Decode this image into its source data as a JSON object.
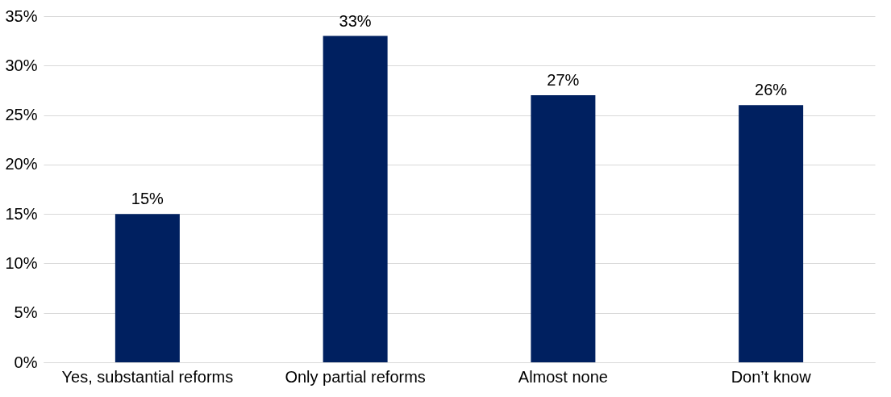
{
  "chart_data": {
    "type": "bar",
    "categories": [
      "Yes, substantial reforms",
      "Only partial reforms",
      "Almost none",
      "Don’t know"
    ],
    "values": [
      15,
      33,
      27,
      26
    ],
    "color": "#002060",
    "ylim": [
      0,
      35
    ],
    "yticks": [
      {
        "value": 0,
        "label": "0%"
      },
      {
        "value": 5,
        "label": "5%"
      },
      {
        "value": 10,
        "label": "10%"
      },
      {
        "value": 15,
        "label": "15%"
      },
      {
        "value": 20,
        "label": "20%"
      },
      {
        "value": 25,
        "label": "25%"
      },
      {
        "value": 30,
        "label": "30%"
      },
      {
        "value": 35,
        "label": "35%"
      }
    ],
    "value_labels": [
      "15%",
      "33%",
      "27%",
      "26%"
    ],
    "grid": "y"
  }
}
